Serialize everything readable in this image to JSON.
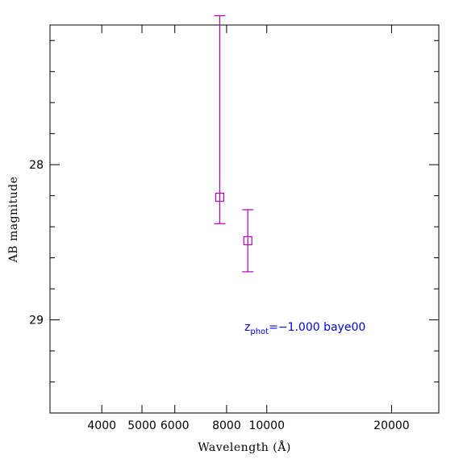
{
  "chart_data": {
    "type": "scatter",
    "xlabel": "Wavelength (Å)",
    "ylabel": "AB magnitude",
    "xscale": "log",
    "xlim": [
      3000,
      26000
    ],
    "ylim": [
      29.6,
      27.1
    ],
    "y_inverted": true,
    "x_tick_labels": [
      {
        "value": 4000,
        "label": "4000"
      },
      {
        "value": 5000,
        "label": "5000"
      },
      {
        "value": 6000,
        "label": "6000"
      },
      {
        "value": 8000,
        "label": "8000"
      },
      {
        "value": 10000,
        "label": "10000"
      },
      {
        "value": 20000,
        "label": "20000"
      }
    ],
    "y_tick_labels": [
      {
        "value": 28,
        "label": "28"
      },
      {
        "value": 29,
        "label": "29"
      }
    ],
    "y_minor_ticks": [
      27.2,
      27.4,
      27.6,
      27.8,
      28.2,
      28.4,
      28.6,
      28.8,
      29.2,
      29.4
    ],
    "series": [
      {
        "marker": "open-square",
        "color": "#b000b0",
        "points": [
          {
            "x": 7700,
            "y": 28.21,
            "yerr_low": 27.04,
            "yerr_high": 28.38
          },
          {
            "x": 9000,
            "y": 28.49,
            "yerr_low": 28.29,
            "yerr_high": 28.69
          }
        ]
      }
    ],
    "annotation": {
      "main": "z",
      "subscript": "phot",
      "rest": "=−1.000 baye00",
      "color": "#0000e0"
    },
    "grid": false,
    "legend": "none"
  }
}
